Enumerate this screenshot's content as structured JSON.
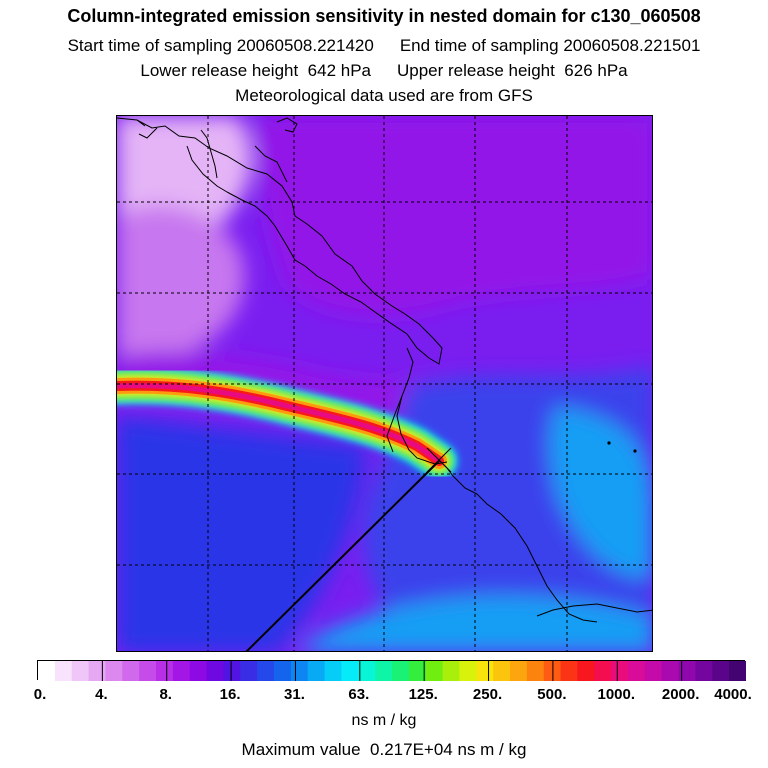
{
  "title": "Column-integrated emission sensitivity in nested domain for c130_060508",
  "sampling": {
    "start_label": "Start time of sampling",
    "start_value": "20060508.221420",
    "end_label": "End time of sampling",
    "end_value": "20060508.221501"
  },
  "release": {
    "lower_label": "Lower release height",
    "lower_value": "642 hPa",
    "upper_label": "Upper release height",
    "upper_value": "626 hPa"
  },
  "met_note": "Meteorological data used are from GFS",
  "colorbar": {
    "labels": [
      "0.",
      "4.",
      "8.",
      "16.",
      "31.",
      "63.",
      "125.",
      "250.",
      "500.",
      "1000.",
      "2000.",
      "4000."
    ],
    "units": "ns m / kg",
    "colors": [
      "#ffffff",
      "#f7e3fb",
      "#efc6f7",
      "#e6a8f3",
      "#dd88ef",
      "#d169ec",
      "#c64cea",
      "#b82fe8",
      "#a416e6",
      "#8d0ae4",
      "#6f09e2",
      "#5214e3",
      "#3a2de6",
      "#2448ea",
      "#1464ee",
      "#0e86f2",
      "#08aaf6",
      "#06ccf8",
      "#05ecf8",
      "#08f5d8",
      "#0ff5a8",
      "#1af276",
      "#33ee3c",
      "#70ee0f",
      "#a8f00b",
      "#d8f20b",
      "#f8e40c",
      "#fbc50d",
      "#fca50e",
      "#fd830f",
      "#fd5c12",
      "#fb3416",
      "#f8161f",
      "#f40d4f",
      "#ea0b7c",
      "#d90b99",
      "#c40aa8",
      "#ab09b0",
      "#8f07ad",
      "#74069f",
      "#5a048a",
      "#430370"
    ]
  },
  "max_value_label": "Maximum value",
  "max_value": "0.217E+04 ns m / kg",
  "map": {
    "field_colors": {
      "background": "#7a1ef0",
      "pink_nw": "#e4b4f6",
      "light_pink": "#c777ef",
      "violet": "#9312e8",
      "blue_east": "#3b42ec",
      "cyan_south": "#169ef4",
      "deep_blue": "#2a34e8"
    },
    "plume_colors": [
      "#0ee8f4",
      "#3cf070",
      "#f5e80c",
      "#fd9b0f",
      "#f8181c",
      "#e80a80"
    ]
  }
}
